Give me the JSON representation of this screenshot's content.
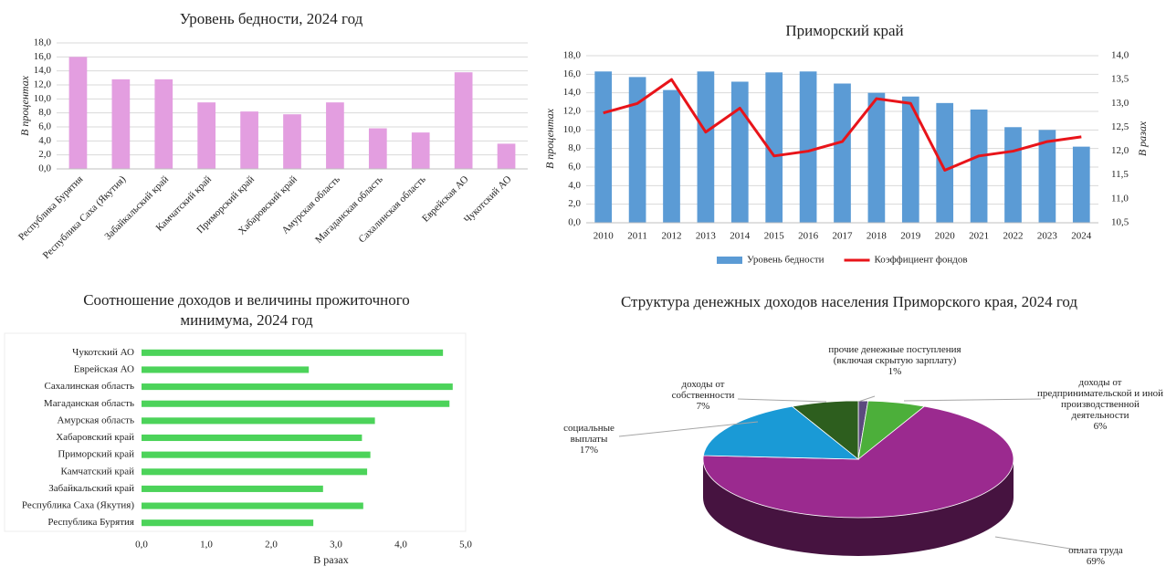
{
  "chart_data": [
    {
      "type": "bar",
      "title": "Уровень бедности, 2024 год",
      "ylabel": "В процентах",
      "categories": [
        "Республика Бурятия",
        "Республика Саха (Якутия)",
        "Забайкальский край",
        "Камчатский край",
        "Приморский край",
        "Хабаровский край",
        "Амурская область",
        "Магаданская область",
        "Сахалинская область",
        "Еврейская АО",
        "Чукотский АО"
      ],
      "values": [
        16.0,
        12.8,
        12.8,
        9.5,
        8.2,
        7.8,
        9.5,
        5.8,
        5.2,
        13.8,
        3.6
      ],
      "color": "#e39ee0",
      "ylim": [
        0,
        18
      ],
      "yticks": [
        {
          "value": 0,
          "label": "0,0"
        },
        {
          "value": 2,
          "label": "2,0"
        },
        {
          "value": 4,
          "label": "4,0"
        },
        {
          "value": 6,
          "label": "6,0"
        },
        {
          "value": 8,
          "label": "8,0"
        },
        {
          "value": 10,
          "label": "10,0"
        },
        {
          "value": 12,
          "label": "12,0"
        },
        {
          "value": 14,
          "label": "14,0"
        },
        {
          "value": 16,
          "label": "16,0"
        },
        {
          "value": 18,
          "label": "18,0"
        }
      ],
      "grid": true
    },
    {
      "type": "combo",
      "title": "Приморский край",
      "ylabel": "В процентах",
      "y2label": "В разах",
      "categories": [
        "2010",
        "2011",
        "2012",
        "2013",
        "2014",
        "2015",
        "2016",
        "2017",
        "2018",
        "2019",
        "2020",
        "2021",
        "2022",
        "2023",
        "2024"
      ],
      "series": [
        {
          "name": "Уровень бедности",
          "color": "#5b9bd5",
          "type": "bar",
          "values": [
            16.3,
            15.7,
            14.3,
            16.3,
            15.2,
            16.2,
            16.3,
            15.0,
            14.0,
            13.6,
            12.9,
            12.2,
            10.3,
            10.0,
            8.2
          ]
        },
        {
          "name": "Коэффициент фондов",
          "color": "#e8141a",
          "type": "line",
          "axis": "y2",
          "values": [
            12.8,
            13.0,
            13.5,
            12.4,
            12.9,
            11.9,
            12.0,
            12.2,
            13.1,
            13.0,
            11.6,
            11.9,
            12.0,
            12.2,
            12.3
          ]
        }
      ],
      "ylim": [
        0,
        18
      ],
      "yticks": [
        {
          "value": 0,
          "label": "0,0"
        },
        {
          "value": 2,
          "label": "2,0"
        },
        {
          "value": 4,
          "label": "4,0"
        },
        {
          "value": 6,
          "label": "6,0"
        },
        {
          "value": 8,
          "label": "8,0"
        },
        {
          "value": 10,
          "label": "10,0"
        },
        {
          "value": 12,
          "label": "12,0"
        },
        {
          "value": 14,
          "label": "14,0"
        },
        {
          "value": 16,
          "label": "16,0"
        },
        {
          "value": 18,
          "label": "18,0"
        }
      ],
      "y2lim": [
        10.5,
        14.0
      ],
      "y2ticks": [
        {
          "value": 10.5,
          "label": "10,5"
        },
        {
          "value": 11,
          "label": "11,0"
        },
        {
          "value": 11.5,
          "label": "11,5"
        },
        {
          "value": 12,
          "label": "12,0"
        },
        {
          "value": 12.5,
          "label": "12,5"
        },
        {
          "value": 13,
          "label": "13,0"
        },
        {
          "value": 13.5,
          "label": "13,5"
        },
        {
          "value": 14,
          "label": "14,0"
        }
      ],
      "grid": true,
      "legend": "bottom"
    },
    {
      "type": "barh",
      "title": "Соотношение доходов и величины прожиточного минимума, 2024 год",
      "xlabel": "В разах",
      "categories": [
        "Республика Бурятия",
        "Республика Саха (Якутия)",
        "Забайкальский край",
        "Камчатский край",
        "Приморский край",
        "Хабаровский край",
        "Амурская область",
        "Магаданская область",
        "Сахалинская область",
        "Еврейская АО",
        "Чукотский АО"
      ],
      "values": [
        2.65,
        3.42,
        2.8,
        3.48,
        3.53,
        3.4,
        3.6,
        4.75,
        4.8,
        2.58,
        4.65
      ],
      "color": "#4cd35a",
      "xlim": [
        0,
        5
      ],
      "xticks": [
        {
          "value": 0,
          "label": "0,0"
        },
        {
          "value": 1,
          "label": "1,0"
        },
        {
          "value": 2,
          "label": "2,0"
        },
        {
          "value": 3,
          "label": "3,0"
        },
        {
          "value": 4,
          "label": "4,0"
        },
        {
          "value": 5,
          "label": "5,0"
        }
      ],
      "grid": false
    },
    {
      "type": "pie3d",
      "title": "Структура денежных доходов населения Приморского края, 2024 год",
      "categories": [
        "прочие денежные поступления (включая скрытую зарплату)",
        "доходы от предпринимательской и иной производственной деятельности",
        "оплата труда",
        "социальные выплаты",
        "доходы от собственности"
      ],
      "values": [
        1,
        6,
        69,
        17,
        7
      ],
      "value_labels": [
        "1%",
        "6%",
        "69%",
        "17%",
        "7%"
      ],
      "colors": [
        "#5b4a7e",
        "#4caf3a",
        "#9b2a8f",
        "#1a9ad6",
        "#2d5e1e"
      ]
    }
  ]
}
